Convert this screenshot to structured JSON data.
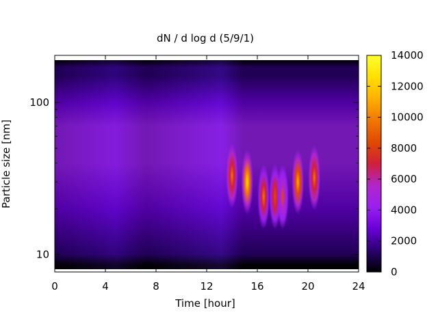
{
  "chart_data": {
    "type": "heatmap",
    "title": "dN / d log d (5/9/1)",
    "xlabel": "Time [hour]",
    "ylabel": "Particle size [nm]",
    "x_ticks": [
      "0",
      "4",
      "8",
      "12",
      "16",
      "20",
      "24"
    ],
    "xlim": [
      0,
      24
    ],
    "y_scale": "log",
    "ylim": [
      8,
      190
    ],
    "y_ticks": [
      "10",
      "100"
    ],
    "colorbar": {
      "range": [
        0,
        14000
      ],
      "ticks": [
        "0",
        "2000",
        "4000",
        "6000",
        "8000",
        "10000",
        "12000",
        "14000"
      ],
      "palette": [
        "#000000",
        "#2a0070",
        "#6a00d8",
        "#9a20f0",
        "#b026c8",
        "#d0203a",
        "#e04a00",
        "#f07800",
        "#ffb000",
        "#ffe000",
        "#ffff30"
      ]
    },
    "background": {
      "value_profile": [
        {
          "d": 8.5,
          "value": 600
        },
        {
          "d": 10,
          "value": 1200
        },
        {
          "d": 20,
          "value": 2600
        },
        {
          "d": 40,
          "value": 3600
        },
        {
          "d": 70,
          "value": 3800
        },
        {
          "d": 100,
          "value": 3200
        },
        {
          "d": 150,
          "value": 1800
        },
        {
          "d": 170,
          "value": 900
        },
        {
          "d": 190,
          "value": 200
        }
      ]
    },
    "events": [
      {
        "hour": 14.0,
        "d_center": 33,
        "peak": 10000
      },
      {
        "hour": 15.2,
        "d_center": 30,
        "peak": 12500
      },
      {
        "hour": 16.5,
        "d_center": 24,
        "peak": 9500
      },
      {
        "hour": 17.4,
        "d_center": 24,
        "peak": 9000
      },
      {
        "hour": 18.0,
        "d_center": 24,
        "peak": 8000
      },
      {
        "hour": 19.2,
        "d_center": 30,
        "peak": 11000
      },
      {
        "hour": 20.5,
        "d_center": 32,
        "peak": 10000
      }
    ]
  }
}
